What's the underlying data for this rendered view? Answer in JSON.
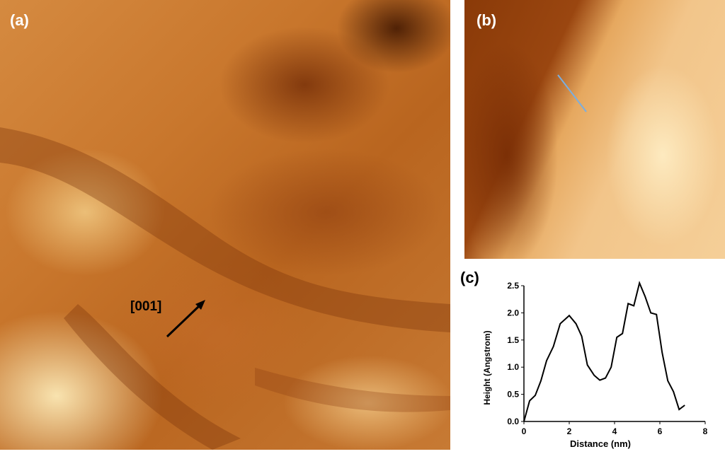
{
  "figure": {
    "panel_a_label": "(a)",
    "panel_b_label": "(b)",
    "panel_c_label": "(c)",
    "direction_label": "[001]",
    "line_profile_color": "#7aaee0",
    "arrow_color": "#000000"
  },
  "chart_data": {
    "type": "line",
    "xlabel": "Distance (nm)",
    "ylabel": "Height (Angstrom)",
    "xlim": [
      0,
      8
    ],
    "ylim": [
      0,
      2.5
    ],
    "xticks": [
      0,
      2,
      4,
      6,
      8
    ],
    "yticks": [
      0.0,
      0.5,
      1.0,
      1.5,
      2.0,
      2.5
    ],
    "xtick_labels": [
      "0",
      "2",
      "4",
      "6",
      "8"
    ],
    "ytick_labels": [
      "0.0",
      "0.5",
      "1.0",
      "1.5",
      "2.0",
      "2.5"
    ],
    "grid": false,
    "series": [
      {
        "color": "#000000",
        "x": [
          0.0,
          0.25,
          0.5,
          0.75,
          1.0,
          1.3,
          1.6,
          2.0,
          2.3,
          2.55,
          2.8,
          3.1,
          3.35,
          3.6,
          3.85,
          4.1,
          4.35,
          4.6,
          4.85,
          5.1,
          5.35,
          5.6,
          5.85,
          6.1,
          6.35,
          6.6,
          6.85,
          7.1
        ],
        "y": [
          0.0,
          0.38,
          0.48,
          0.75,
          1.12,
          1.38,
          1.8,
          1.95,
          1.8,
          1.57,
          1.04,
          0.85,
          0.76,
          0.8,
          1.0,
          1.55,
          1.62,
          2.17,
          2.13,
          2.55,
          2.3,
          2.0,
          1.97,
          1.27,
          0.75,
          0.55,
          0.22,
          0.3
        ]
      }
    ]
  }
}
